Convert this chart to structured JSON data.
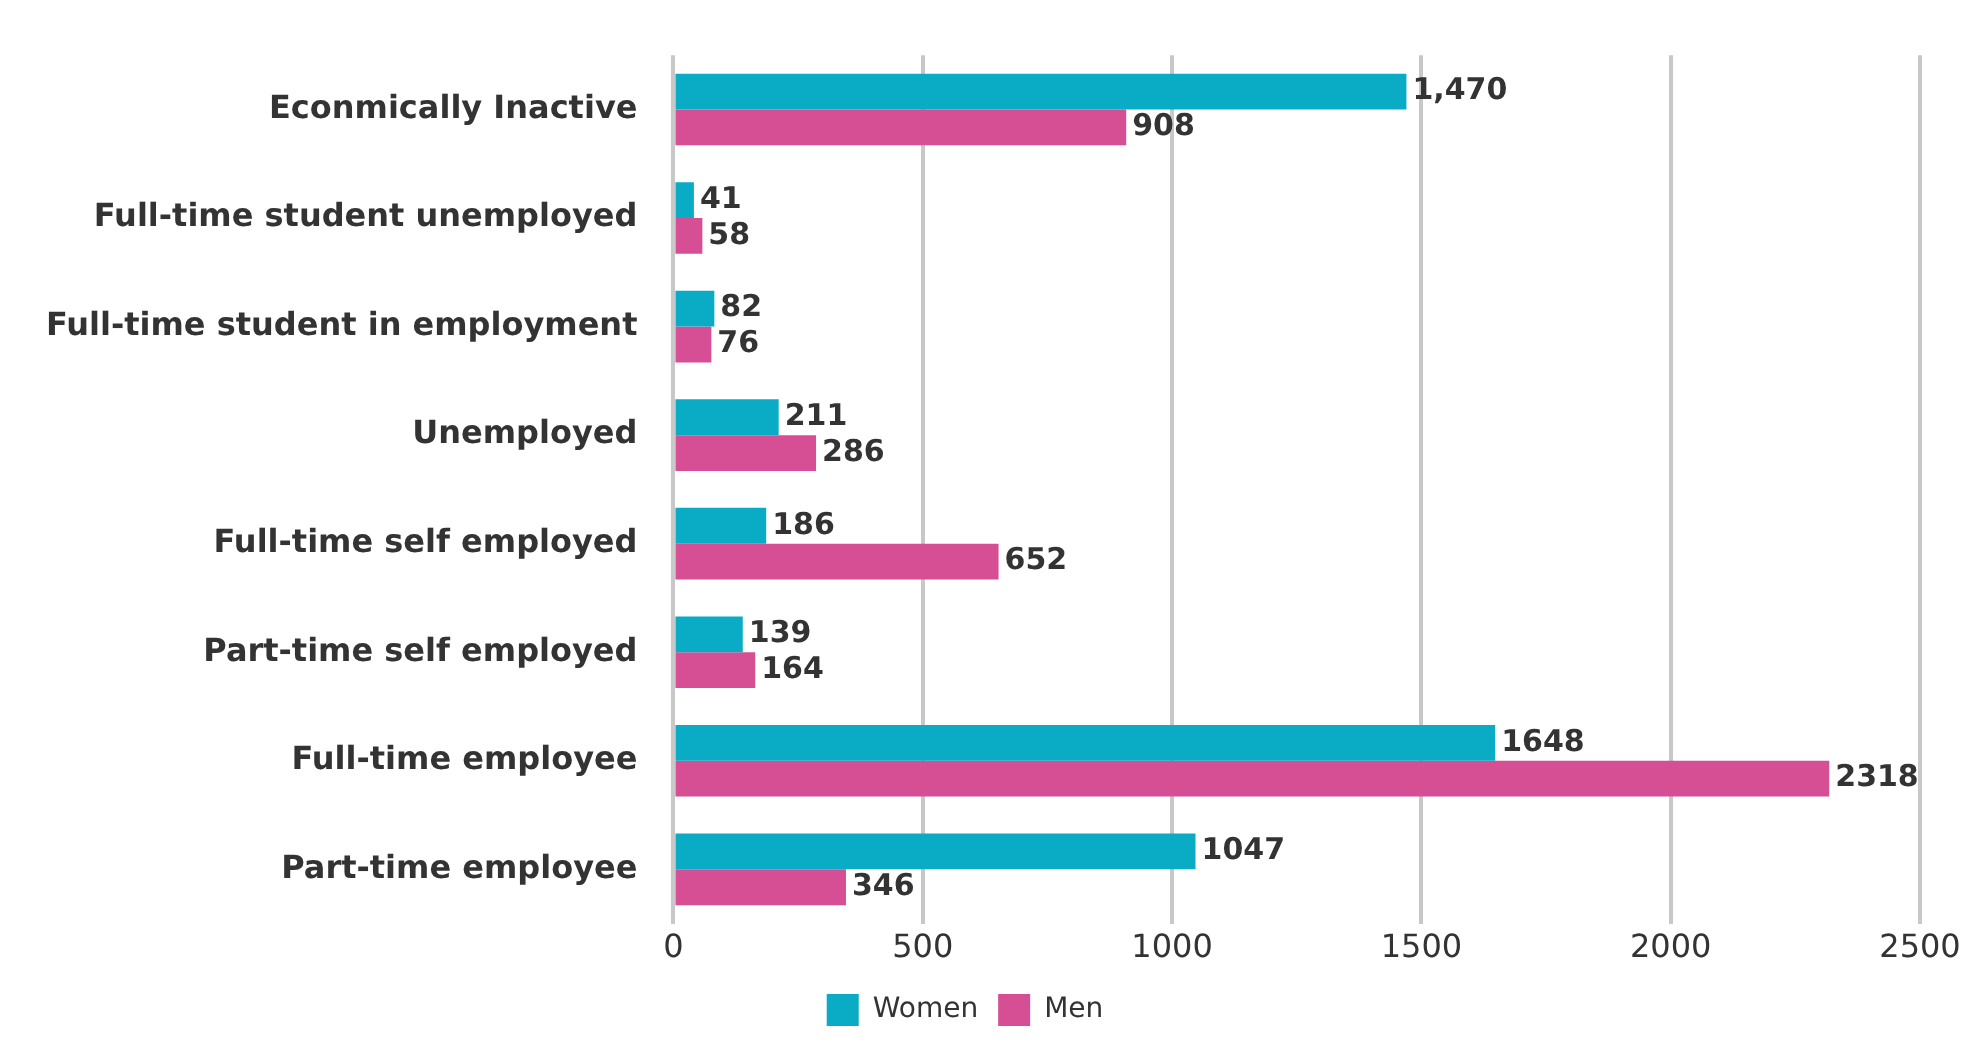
{
  "chart_data": {
    "type": "bar",
    "orientation": "horizontal",
    "categories": [
      "Econmically Inactive",
      "Full-time student unemployed",
      "Full-time student in employment",
      "Unemployed",
      "Full-time self employed",
      "Part-time self employed",
      "Full-time employee",
      "Part-time employee"
    ],
    "series": [
      {
        "name": "Women",
        "color": "#0aacc5",
        "values": [
          1470,
          41,
          82,
          211,
          186,
          139,
          1648,
          1047
        ],
        "value_labels": [
          "1,470",
          "41",
          "82",
          "211",
          "186",
          "139",
          "1648",
          "1047"
        ]
      },
      {
        "name": "Men",
        "color": "#d64f95",
        "values": [
          908,
          58,
          76,
          286,
          652,
          164,
          2318,
          346
        ],
        "value_labels": [
          "908",
          "58",
          "76",
          "286",
          "652",
          "164",
          "2318",
          "346"
        ]
      }
    ],
    "xlim": [
      0,
      2500
    ],
    "xticks": [
      0,
      500,
      1000,
      1500,
      2000,
      2500
    ],
    "grid": "x",
    "legend": "bottom"
  }
}
